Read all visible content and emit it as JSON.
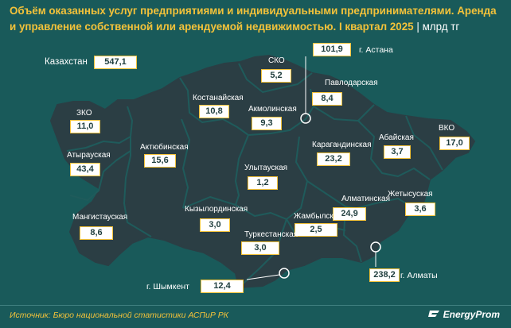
{
  "title": "Объём оказанных услуг предприятиями и индивидуальными предпринимателями. Аренда и управление собственной или арендуемой недвижимостью. I квартал 2025",
  "unit": "млрд тг",
  "total": {
    "label": "Казахстан",
    "value": "547,1"
  },
  "regions": [
    {
      "name": "СКО",
      "value": "5,2"
    },
    {
      "name": "Павлодарская",
      "value": "8,4"
    },
    {
      "name": "Костанайская",
      "value": "10,8"
    },
    {
      "name": "Акмолинская",
      "value": "9,3"
    },
    {
      "name": "ЗКО",
      "value": "11,0"
    },
    {
      "name": "Абайская",
      "value": "3,7"
    },
    {
      "name": "ВКО",
      "value": "17,0"
    },
    {
      "name": "Атырауская",
      "value": "43,4"
    },
    {
      "name": "Актюбинская",
      "value": "15,6"
    },
    {
      "name": "Карагандинская",
      "value": "23,2"
    },
    {
      "name": "Улытауская",
      "value": "1,2"
    },
    {
      "name": "Жетысуская",
      "value": "3,6"
    },
    {
      "name": "Мангистауская",
      "value": "8,6"
    },
    {
      "name": "Кызылординская",
      "value": "3,0"
    },
    {
      "name": "Алматинская",
      "value": "24,9"
    },
    {
      "name": "Жамбылская",
      "value": "2,5"
    },
    {
      "name": "Туркестанская",
      "value": "3,0"
    }
  ],
  "cities": [
    {
      "name": "г. Астана",
      "value": "101,9"
    },
    {
      "name": "г. Алматы",
      "value": "238,2"
    },
    {
      "name": "г. Шымкент",
      "value": "12,4"
    }
  ],
  "source": "Источник: Бюро национальной статистики АСПиР РК",
  "brand": "EnergyProm",
  "colors": {
    "background": "#195a5a",
    "map_fill": "#2b3e44",
    "accent": "#f3c23a"
  }
}
